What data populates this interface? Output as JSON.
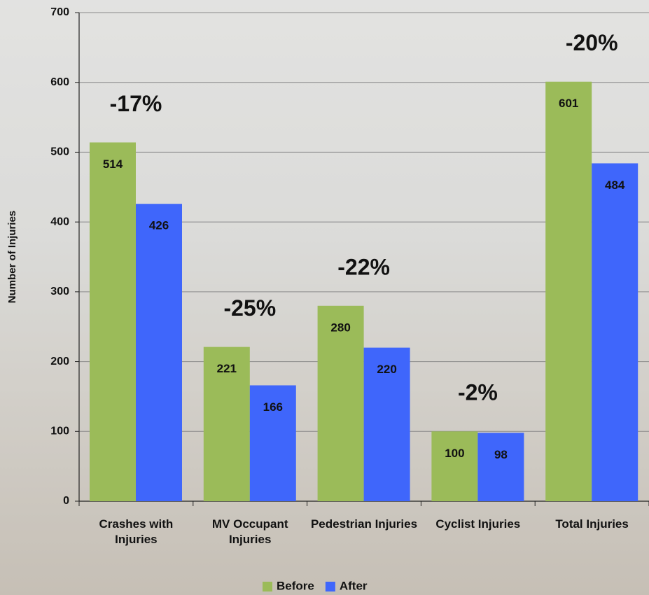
{
  "chart_data": {
    "type": "bar",
    "categories": [
      "Crashes with Injuries",
      "MV Occupant Injuries",
      "Pedestrian Injuries",
      "Cyclist Injuries",
      "Total Injuries"
    ],
    "series": [
      {
        "name": "Before",
        "color": "#9bbb59",
        "values": [
          514,
          221,
          280,
          100,
          601
        ]
      },
      {
        "name": "After",
        "color": "#3f66fb",
        "values": [
          426,
          166,
          220,
          98,
          484
        ]
      }
    ],
    "annotations": [
      "-17%",
      "-25%",
      "-22%",
      "-2%",
      "-20%"
    ],
    "y_label": "Number of Injuries",
    "ylim": [
      0,
      700
    ],
    "yticks": [
      0,
      100,
      200,
      300,
      400,
      500,
      600,
      700
    ],
    "grid": true,
    "legend": "bottom"
  }
}
